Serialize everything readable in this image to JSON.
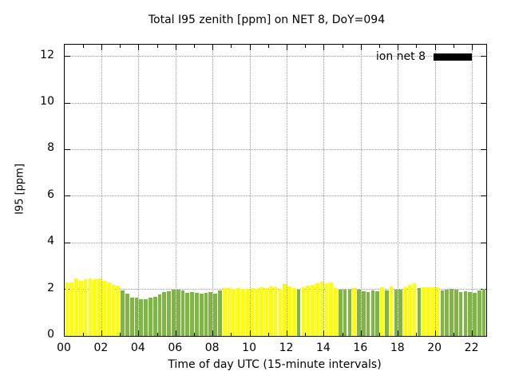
{
  "chart_data": {
    "type": "bar",
    "title": "Total I95 zenith [ppm] on NET 8, DoY=094",
    "xlabel": "Time of day UTC (15-minute intervals)",
    "ylabel": "I95 [ppm]",
    "legend": [
      {
        "label": "ion net 8",
        "swatch_color": "#000000"
      }
    ],
    "grid": true,
    "ylim": [
      0,
      12.5
    ],
    "yticks": [
      0,
      2,
      4,
      6,
      8,
      10,
      12
    ],
    "xlim_hours": [
      0,
      22.75
    ],
    "xtick_hours": [
      0,
      2,
      4,
      6,
      8,
      10,
      12,
      14,
      16,
      18,
      20,
      22
    ],
    "xtick_labels": [
      "00",
      "02",
      "04",
      "06",
      "08",
      "10",
      "12",
      "14",
      "16",
      "18",
      "20",
      "22"
    ],
    "minor_xtick_every_hours": 1,
    "interval_minutes": 15,
    "start_time": "00:00",
    "bar_colors": {
      "Y": "#ffff00",
      "G": "#7db742"
    },
    "series": [
      {
        "name": "ion net 8",
        "values": [
          2.3,
          2.28,
          2.45,
          2.35,
          2.42,
          2.48,
          2.42,
          2.45,
          2.38,
          2.3,
          2.2,
          2.15,
          1.95,
          1.82,
          1.63,
          1.65,
          1.59,
          1.56,
          1.63,
          1.67,
          1.78,
          1.88,
          1.93,
          2.0,
          1.97,
          1.94,
          1.85,
          1.9,
          1.85,
          1.81,
          1.85,
          1.88,
          1.82,
          1.95,
          2.07,
          2.06,
          2.03,
          2.05,
          2.03,
          2.03,
          2.06,
          2.02,
          2.1,
          2.07,
          2.12,
          2.08,
          2.01,
          2.22,
          2.12,
          2.06,
          2.0,
          2.08,
          2.15,
          2.2,
          2.25,
          2.33,
          2.27,
          2.3,
          2.07,
          2.0,
          1.99,
          2.0,
          2.07,
          1.99,
          1.91,
          1.88,
          1.95,
          1.93,
          2.1,
          1.95,
          2.12,
          2.0,
          1.98,
          2.1,
          2.2,
          2.25,
          2.05,
          2.1,
          2.1,
          2.08,
          2.1,
          1.95,
          2.0,
          2.02,
          1.98,
          1.9,
          1.92,
          1.88,
          1.86,
          1.95,
          2.02
        ],
        "colors": [
          "Y",
          "Y",
          "Y",
          "Y",
          "Y",
          "Y",
          "Y",
          "Y",
          "Y",
          "Y",
          "Y",
          "Y",
          "G",
          "G",
          "G",
          "G",
          "G",
          "G",
          "G",
          "G",
          "G",
          "G",
          "G",
          "G",
          "G",
          "G",
          "G",
          "G",
          "G",
          "G",
          "G",
          "G",
          "G",
          "G",
          "Y",
          "Y",
          "Y",
          "Y",
          "Y",
          "Y",
          "Y",
          "Y",
          "Y",
          "Y",
          "Y",
          "Y",
          "Y",
          "Y",
          "Y",
          "Y",
          "G",
          "Y",
          "Y",
          "Y",
          "Y",
          "Y",
          "Y",
          "Y",
          "Y",
          "G",
          "G",
          "G",
          "Y",
          "G",
          "G",
          "G",
          "G",
          "G",
          "Y",
          "G",
          "Y",
          "G",
          "G",
          "Y",
          "Y",
          "Y",
          "G",
          "Y",
          "Y",
          "Y",
          "Y",
          "G",
          "G",
          "G",
          "G",
          "G",
          "G",
          "G",
          "G",
          "G",
          "G"
        ]
      }
    ]
  }
}
